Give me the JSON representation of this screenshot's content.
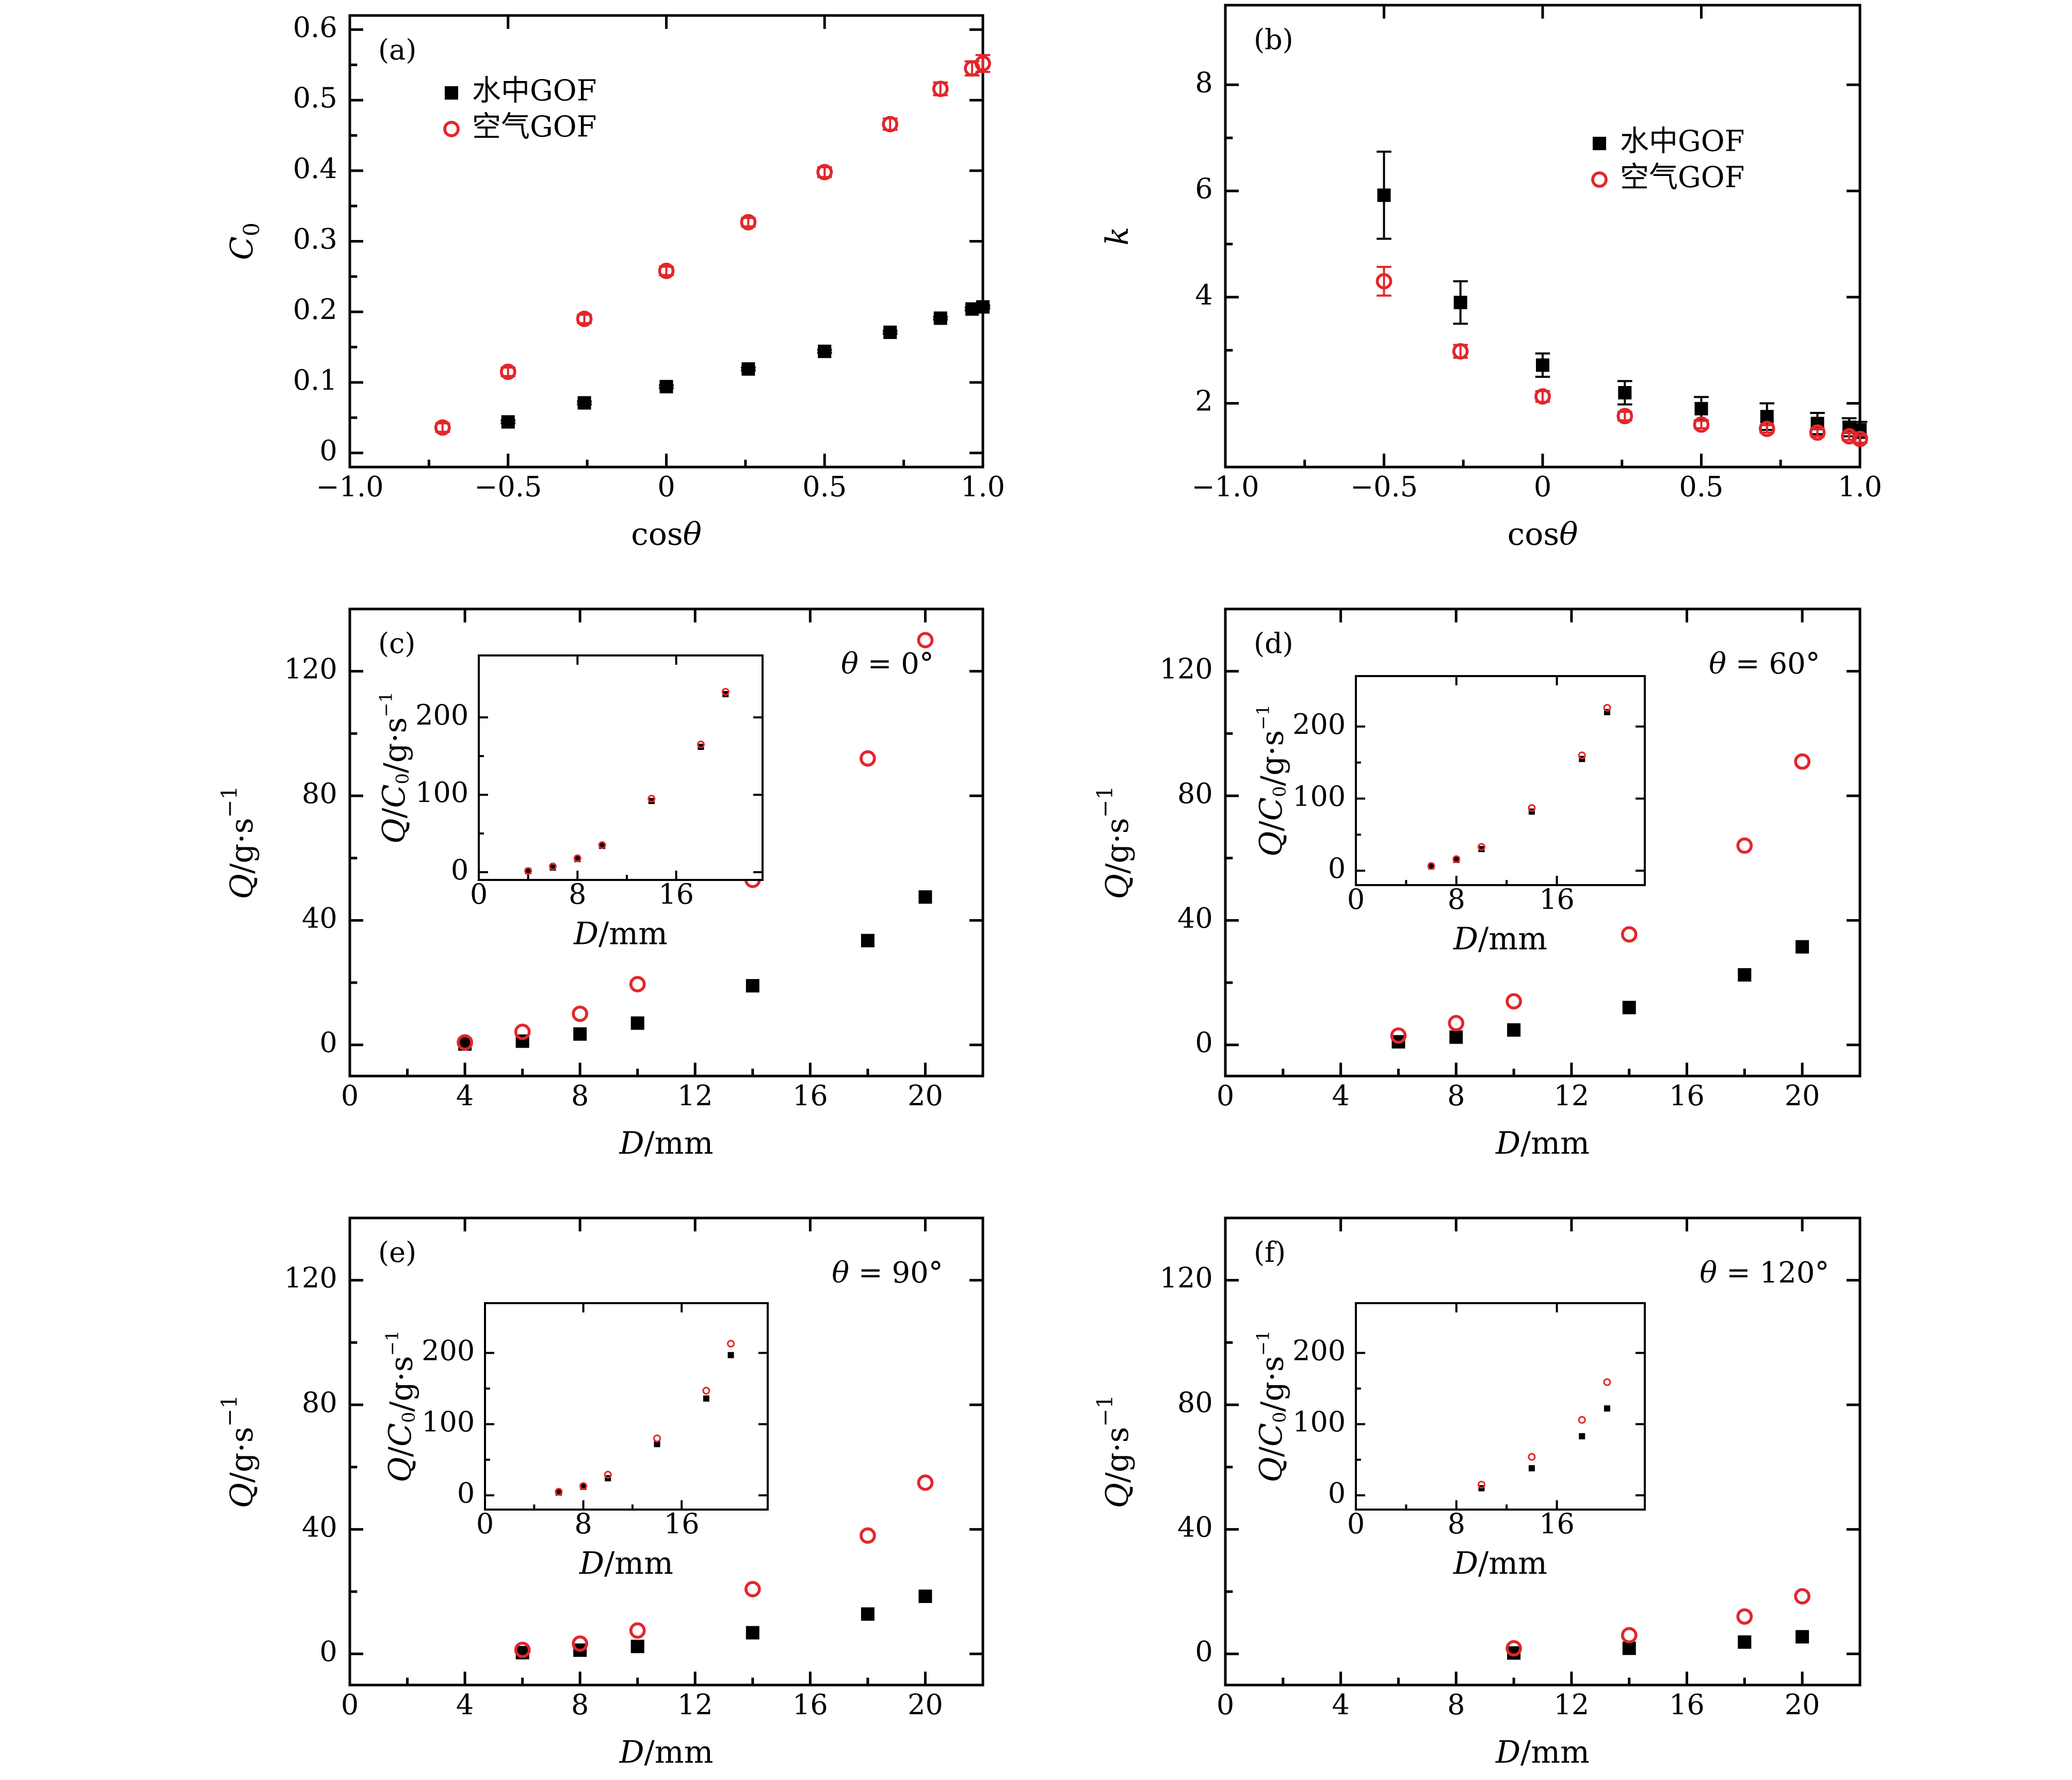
{
  "colors": {
    "water": "#000000",
    "air": "#e3262b",
    "frame": "#000000"
  },
  "chart_data": [
    {
      "id": "a",
      "type": "scatter",
      "panel_label": "(a)",
      "xlabel": "cosθ",
      "ylabel": "C0",
      "xlim": [
        -1.0,
        1.0
      ],
      "ylim": [
        -0.02,
        0.62
      ],
      "xticks": [
        -1.0,
        -0.5,
        0,
        0.5,
        1.0
      ],
      "xticklabels": [
        "−1.0",
        "−0.5",
        "0",
        "0.5",
        "1.0"
      ],
      "yticks": [
        0,
        0.1,
        0.2,
        0.3,
        0.4,
        0.5,
        0.6
      ],
      "yticklabels": [
        "0",
        "0.1",
        "0.2",
        "0.3",
        "0.4",
        "0.5",
        "0.6"
      ],
      "legend": {
        "position": "top-left",
        "entries": [
          "水中GOF",
          "空气GOF"
        ]
      },
      "series": [
        {
          "name": "水中GOF",
          "marker": "square",
          "x": [
            -0.5,
            -0.259,
            0,
            0.259,
            0.5,
            0.707,
            0.866,
            0.966,
            1.0
          ],
          "y": [
            0.044,
            0.071,
            0.094,
            0.119,
            0.144,
            0.171,
            0.191,
            0.204,
            0.207
          ],
          "err": [
            0.002,
            0.002,
            0.002,
            0.002,
            0.002,
            0.002,
            0.002,
            0.002,
            0.002
          ]
        },
        {
          "name": "空气GOF",
          "marker": "circle",
          "x": [
            -0.707,
            -0.5,
            -0.259,
            0,
            0.259,
            0.5,
            0.707,
            0.866,
            0.966,
            1.0
          ],
          "y": [
            0.036,
            0.115,
            0.19,
            0.258,
            0.327,
            0.398,
            0.466,
            0.516,
            0.545,
            0.552
          ],
          "err": [
            0.006,
            0.006,
            0.006,
            0.006,
            0.006,
            0.007,
            0.008,
            0.009,
            0.01,
            0.012
          ]
        }
      ]
    },
    {
      "id": "b",
      "type": "scatter",
      "panel_label": "(b)",
      "xlabel": "cosθ",
      "ylabel": "k",
      "xlim": [
        -1.0,
        1.0
      ],
      "ylim": [
        0.8,
        9.5
      ],
      "xticks": [
        -1.0,
        -0.5,
        0,
        0.5,
        1.0
      ],
      "xticklabels": [
        "−1.0",
        "−0.5",
        "0",
        "0.5",
        "1.0"
      ],
      "yticks": [
        2,
        4,
        6,
        8
      ],
      "yticklabels": [
        "2",
        "4",
        "6",
        "8"
      ],
      "legend": {
        "position": "top-right",
        "entries": [
          "水中GOF",
          "空气GOF"
        ]
      },
      "series": [
        {
          "name": "水中GOF",
          "marker": "square",
          "x": [
            -0.5,
            -0.259,
            0,
            0.259,
            0.5,
            0.707,
            0.866,
            0.966,
            1.0
          ],
          "y": [
            5.92,
            3.9,
            2.72,
            2.2,
            1.9,
            1.75,
            1.62,
            1.55,
            1.5
          ],
          "err": [
            0.82,
            0.4,
            0.22,
            0.22,
            0.22,
            0.25,
            0.2,
            0.17,
            0.15
          ]
        },
        {
          "name": "空气GOF",
          "marker": "circle",
          "x": [
            -0.5,
            -0.259,
            0,
            0.259,
            0.5,
            0.707,
            0.866,
            0.966,
            1.0
          ],
          "y": [
            4.3,
            2.98,
            2.13,
            1.76,
            1.6,
            1.52,
            1.45,
            1.38,
            1.33
          ],
          "err": [
            0.27,
            0.12,
            0.1,
            0.08,
            0.07,
            0.07,
            0.07,
            0.07,
            0.07
          ]
        }
      ]
    },
    {
      "id": "c",
      "type": "scatter",
      "panel_label": "(c)",
      "annotation": "θ = 0°",
      "xlabel": "D/mm",
      "ylabel": "Q/g·s−1",
      "xlim": [
        0,
        22
      ],
      "ylim": [
        -10,
        140
      ],
      "xticks": [
        0,
        4,
        8,
        12,
        16,
        20
      ],
      "xticklabels": [
        "0",
        "4",
        "8",
        "12",
        "16",
        "20"
      ],
      "yticks": [
        0,
        40,
        80,
        120
      ],
      "yticklabels": [
        "0",
        "40",
        "80",
        "120"
      ],
      "series": [
        {
          "name": "水中GOF",
          "marker": "square",
          "x": [
            4,
            6,
            8,
            10,
            14,
            18,
            20
          ],
          "y": [
            0.3,
            1.2,
            3.5,
            7.0,
            19.0,
            33.5,
            47.5
          ]
        },
        {
          "name": "空气GOF",
          "marker": "circle",
          "x": [
            4,
            6,
            8,
            10,
            14,
            18,
            20
          ],
          "y": [
            0.8,
            4.2,
            10.0,
            19.5,
            53.0,
            92.0,
            130.0
          ]
        }
      ],
      "inset": {
        "xlabel": "D/mm",
        "ylabel": "Q/C0/g·s−1",
        "xlim": [
          0,
          23
        ],
        "ylim": [
          -10,
          280
        ],
        "xticks": [
          0,
          8,
          16
        ],
        "xticklabels": [
          "0",
          "8",
          "16"
        ],
        "yticks": [
          0,
          100,
          200
        ],
        "yticklabels": [
          "0",
          "100",
          "200"
        ],
        "series": [
          {
            "name": "水中GOF",
            "marker": "square",
            "x": [
              4,
              6,
              8,
              10,
              14,
              18,
              20
            ],
            "y": [
              1.5,
              6.0,
              17.0,
              34.0,
              92.0,
              162.0,
              230.0
            ]
          },
          {
            "name": "空气GOF",
            "marker": "circle",
            "x": [
              4,
              6,
              8,
              10,
              14,
              18,
              20
            ],
            "y": [
              1.5,
              7.5,
              18.0,
              35.0,
              95.0,
              165.0,
              233.0
            ]
          }
        ]
      }
    },
    {
      "id": "d",
      "type": "scatter",
      "panel_label": "(d)",
      "annotation": "θ = 60°",
      "xlabel": "D/mm",
      "ylabel": "Q/g·s−1",
      "xlim": [
        0,
        22
      ],
      "ylim": [
        -10,
        140
      ],
      "xticks": [
        0,
        4,
        8,
        12,
        16,
        20
      ],
      "xticklabels": [
        "0",
        "4",
        "8",
        "12",
        "16",
        "20"
      ],
      "yticks": [
        0,
        40,
        80,
        120
      ],
      "yticklabels": [
        "0",
        "40",
        "80",
        "120"
      ],
      "series": [
        {
          "name": "水中GOF",
          "marker": "square",
          "x": [
            6,
            8,
            10,
            14,
            18,
            20
          ],
          "y": [
            1.0,
            2.5,
            4.8,
            12.0,
            22.5,
            31.5
          ]
        },
        {
          "name": "空气GOF",
          "marker": "circle",
          "x": [
            6,
            8,
            10,
            14,
            18,
            20
          ],
          "y": [
            3.0,
            7.0,
            14.0,
            35.5,
            64.0,
            91.0
          ]
        }
      ],
      "inset": {
        "xlabel": "D/mm",
        "ylabel": "Q/C0/g·s−1",
        "xlim": [
          0,
          23
        ],
        "ylim": [
          -20,
          270
        ],
        "xticks": [
          0,
          8,
          16
        ],
        "xticklabels": [
          "0",
          "8",
          "16"
        ],
        "yticks": [
          0,
          100,
          200
        ],
        "yticklabels": [
          "0",
          "100",
          "200"
        ],
        "series": [
          {
            "name": "水中GOF",
            "marker": "square",
            "x": [
              6,
              8,
              10,
              14,
              18,
              20
            ],
            "y": [
              6.0,
              15.0,
              30.0,
              82.0,
              155.0,
              220.0
            ]
          },
          {
            "name": "空气GOF",
            "marker": "circle",
            "x": [
              6,
              8,
              10,
              14,
              18,
              20
            ],
            "y": [
              6.5,
              16.0,
              33.0,
              87.0,
              160.0,
              226.0
            ]
          }
        ]
      }
    },
    {
      "id": "e",
      "type": "scatter",
      "panel_label": "(e)",
      "annotation": "θ = 90°",
      "xlabel": "D/mm",
      "ylabel": "Q/g·s−1",
      "xlim": [
        0,
        22
      ],
      "ylim": [
        -10,
        140
      ],
      "xticks": [
        0,
        4,
        8,
        12,
        16,
        20
      ],
      "xticklabels": [
        "0",
        "4",
        "8",
        "12",
        "16",
        "20"
      ],
      "yticks": [
        0,
        40,
        80,
        120
      ],
      "yticklabels": [
        "0",
        "40",
        "80",
        "120"
      ],
      "series": [
        {
          "name": "水中GOF",
          "marker": "square",
          "x": [
            6,
            8,
            10,
            14,
            18,
            20
          ],
          "y": [
            0.4,
            1.2,
            2.4,
            6.8,
            12.8,
            18.5
          ]
        },
        {
          "name": "空气GOF",
          "marker": "circle",
          "x": [
            6,
            8,
            10,
            14,
            18,
            20
          ],
          "y": [
            1.3,
            3.3,
            7.5,
            20.8,
            38.0,
            55.0
          ]
        }
      ],
      "inset": {
        "xlabel": "D/mm",
        "ylabel": "Q/C0/g·s−1",
        "xlim": [
          0,
          23
        ],
        "ylim": [
          -20,
          270
        ],
        "xticks": [
          0,
          8,
          16
        ],
        "xticklabels": [
          "0",
          "8",
          "16"
        ],
        "yticks": [
          0,
          100,
          200
        ],
        "yticklabels": [
          "0",
          "100",
          "200"
        ],
        "series": [
          {
            "name": "水中GOF",
            "marker": "square",
            "x": [
              6,
              8,
              10,
              14,
              18,
              20
            ],
            "y": [
              4.0,
              12.0,
              24.0,
              72.0,
              136.0,
              197.0
            ]
          },
          {
            "name": "空气GOF",
            "marker": "circle",
            "x": [
              6,
              8,
              10,
              14,
              18,
              20
            ],
            "y": [
              5.0,
              13.0,
              29.0,
              80.0,
              147.0,
              213.0
            ]
          }
        ]
      }
    },
    {
      "id": "f",
      "type": "scatter",
      "panel_label": "(f)",
      "annotation": "θ = 120°",
      "xlabel": "D/mm",
      "ylabel": "Q/g·s−1",
      "xlim": [
        0,
        22
      ],
      "ylim": [
        -10,
        140
      ],
      "xticks": [
        0,
        4,
        8,
        12,
        16,
        20
      ],
      "xticklabels": [
        "0",
        "4",
        "8",
        "12",
        "16",
        "20"
      ],
      "yticks": [
        0,
        40,
        80,
        120
      ],
      "yticklabels": [
        "0",
        "40",
        "80",
        "120"
      ],
      "series": [
        {
          "name": "水中GOF",
          "marker": "square",
          "x": [
            10,
            14,
            18,
            20
          ],
          "y": [
            0.3,
            1.8,
            3.8,
            5.5
          ]
        },
        {
          "name": "空气GOF",
          "marker": "circle",
          "x": [
            10,
            14,
            18,
            20
          ],
          "y": [
            1.8,
            6.0,
            12.0,
            18.5
          ]
        }
      ],
      "inset": {
        "xlabel": "D/mm",
        "ylabel": "Q/C0/g·s−1",
        "xlim": [
          0,
          23
        ],
        "ylim": [
          -20,
          270
        ],
        "xticks": [
          0,
          8,
          16
        ],
        "xticklabels": [
          "0",
          "8",
          "16"
        ],
        "yticks": [
          0,
          100,
          200
        ],
        "yticklabels": [
          "0",
          "100",
          "200"
        ],
        "series": [
          {
            "name": "水中GOF",
            "marker": "square",
            "x": [
              10,
              14,
              18,
              20
            ],
            "y": [
              10.0,
              38.0,
              83.0,
              122.0
            ]
          },
          {
            "name": "空气GOF",
            "marker": "circle",
            "x": [
              10,
              14,
              18,
              20
            ],
            "y": [
              15.0,
              54.0,
              106.0,
              159.0
            ]
          }
        ]
      }
    }
  ]
}
